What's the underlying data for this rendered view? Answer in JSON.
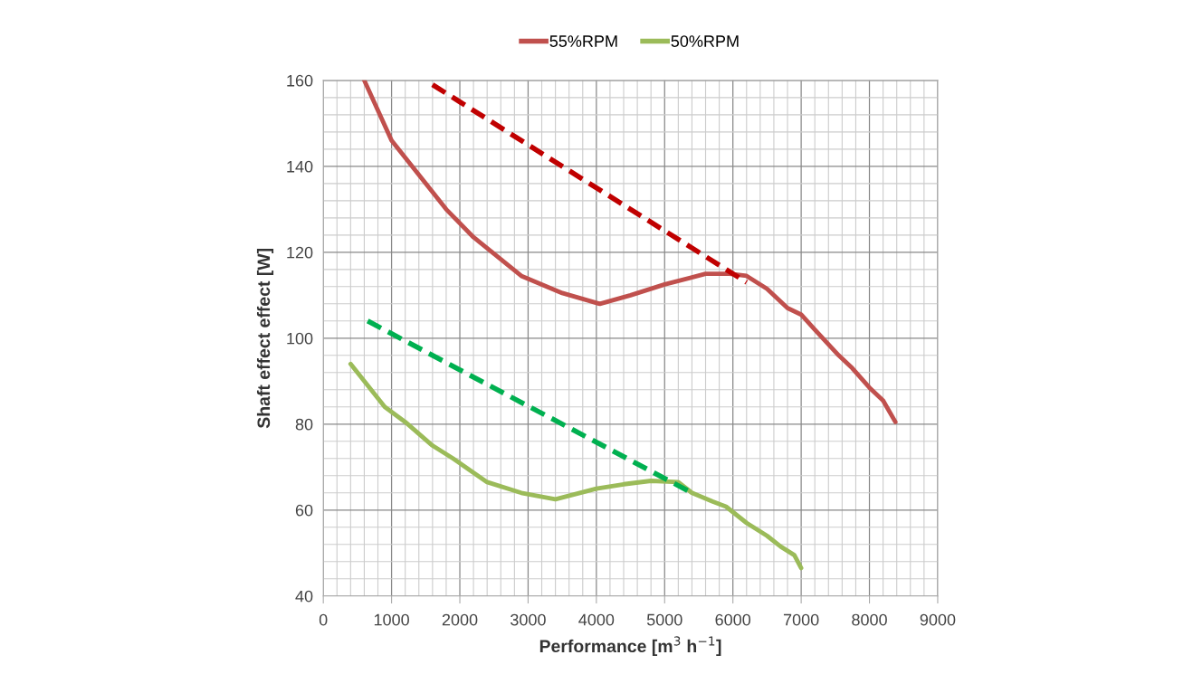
{
  "chart_data": {
    "type": "line",
    "xlabel": "Performance [m$^{3}$ h$^{−1}$]",
    "ylabel": "Shaft effect effect [W]",
    "xlim": [
      0,
      9000
    ],
    "xticks": [
      0,
      1000,
      2000,
      3000,
      4000,
      5000,
      6000,
      7000,
      8000,
      9000
    ],
    "ylim": [
      40,
      160
    ],
    "yticks": [
      40,
      60,
      80,
      100,
      120,
      140,
      160
    ],
    "grid": true,
    "legend": "top",
    "marker": "none",
    "series": [
      {
        "name": "55%RPM",
        "color": "#c0504d",
        "line_style": "solid",
        "x": [
          600,
          1000,
          1500,
          1800,
          2200,
          2900,
          3500,
          4050,
          4500,
          5000,
          5600,
          5950,
          6200,
          6500,
          6800,
          7000,
          7200,
          7550,
          7750,
          8000,
          8200,
          8380
        ],
        "values": [
          160,
          146,
          136,
          130,
          123.5,
          114.5,
          110.5,
          108,
          110,
          112.5,
          115,
          115,
          114.5,
          111.5,
          107,
          105.5,
          102,
          96,
          93,
          88.5,
          85.5,
          80.5
        ]
      },
      {
        "name": "50%RPM",
        "color": "#9bbb59",
        "line_style": "solid",
        "x": [
          400,
          900,
          1200,
          1600,
          1900,
          2400,
          2900,
          3400,
          4000,
          4400,
          4800,
          5200,
          5400,
          5700,
          5900,
          6200,
          6500,
          6700,
          6900,
          7000
        ],
        "values": [
          94,
          84,
          80.5,
          75,
          72,
          66.5,
          64,
          62.5,
          65,
          66,
          66.8,
          66.5,
          64,
          62,
          60.8,
          57,
          54,
          51.5,
          49.5,
          46.5
        ]
      },
      {
        "color": "#c00000",
        "line_style": "dashed",
        "x": [
          1600,
          6200
        ],
        "values": [
          159,
          113
        ]
      },
      {
        "color": "#00b050",
        "line_style": "dashed",
        "x": [
          650,
          5400
        ],
        "values": [
          104,
          64
        ]
      }
    ]
  }
}
